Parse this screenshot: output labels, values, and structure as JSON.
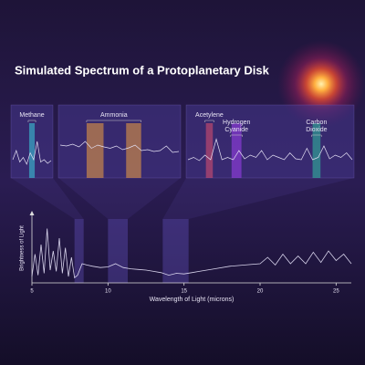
{
  "chart_data": {
    "type": "line",
    "title": "Simulated Spectrum of a Protoplanetary Disk",
    "xlabel": "Wavelength of Light (microns)",
    "ylabel": "Brightness of Light",
    "xlim": [
      5,
      26
    ],
    "xticks": [
      5,
      10,
      15,
      20,
      25
    ],
    "ylim": [
      0,
      1
    ],
    "color": "#d8d4ec",
    "x": [
      5.0,
      5.2,
      5.4,
      5.6,
      5.8,
      6.0,
      6.2,
      6.4,
      6.6,
      6.8,
      7.0,
      7.2,
      7.4,
      7.6,
      7.8,
      8.0,
      8.3,
      8.6,
      9,
      9.5,
      10,
      10.5,
      11,
      11.5,
      12,
      12.5,
      13,
      13.5,
      14,
      14.5,
      15,
      15.5,
      16,
      17,
      18,
      19,
      20,
      20.5,
      21,
      21.5,
      22,
      22.5,
      23,
      23.5,
      24,
      24.5,
      25,
      25.5,
      26
    ],
    "values": [
      0.1,
      0.45,
      0.12,
      0.6,
      0.15,
      0.85,
      0.2,
      0.5,
      0.18,
      0.7,
      0.15,
      0.55,
      0.1,
      0.4,
      0.08,
      0.12,
      0.3,
      0.28,
      0.26,
      0.24,
      0.25,
      0.3,
      0.24,
      0.22,
      0.21,
      0.2,
      0.18,
      0.16,
      0.12,
      0.15,
      0.14,
      0.16,
      0.18,
      0.22,
      0.26,
      0.28,
      0.3,
      0.4,
      0.28,
      0.45,
      0.3,
      0.42,
      0.3,
      0.48,
      0.32,
      0.5,
      0.35,
      0.45,
      0.3
    ],
    "insets": [
      {
        "xlim": [
          7.8,
          8.4
        ],
        "ylim": [
          0,
          1
        ],
        "values": [
          0.3,
          0.5,
          0.25,
          0.35,
          0.2,
          0.45,
          0.3,
          0.7,
          0.25,
          0.3,
          0.22,
          0.28
        ],
        "bands": [
          {
            "label": [
              "Methane"
            ],
            "color": "#3ad0e0",
            "range": [
              8.06,
              8.14
            ]
          }
        ]
      },
      {
        "xlim": [
          10.0,
          11.3
        ],
        "ylim": [
          0,
          1
        ],
        "label": "Ammonia",
        "values": [
          0.62,
          0.6,
          0.64,
          0.58,
          0.7,
          0.55,
          0.62,
          0.58,
          0.55,
          0.6,
          0.52,
          0.56,
          0.62,
          0.5,
          0.52,
          0.48,
          0.5,
          0.6,
          0.46,
          0.48
        ],
        "bands": [
          {
            "color": "#f0a040",
            "range": [
              10.3,
              10.48
            ]
          },
          {
            "color": "#f0a040",
            "range": [
              10.72,
              10.88
            ]
          }
        ]
      },
      {
        "xlim": [
          13.6,
          15.3
        ],
        "ylim": [
          0,
          1
        ],
        "values": [
          0.3,
          0.35,
          0.28,
          0.4,
          0.3,
          0.75,
          0.3,
          0.35,
          0.3,
          0.5,
          0.32,
          0.4,
          0.35,
          0.5,
          0.3,
          0.4,
          0.35,
          0.3,
          0.45,
          0.32,
          0.3,
          0.55,
          0.3,
          0.35,
          0.6,
          0.32,
          0.4,
          0.35,
          0.45,
          0.3
        ],
        "bands": [
          {
            "label": [
              "Acetylene"
            ],
            "color": "#e05070",
            "range": [
              13.8,
              13.87
            ]
          },
          {
            "label": [
              "Hydrogen",
              "Cyanide"
            ],
            "color": "#a040f0",
            "range": [
              14.06,
              14.16
            ]
          },
          {
            "label": [
              "Carbon",
              "Dioxide"
            ],
            "color": "#30c0a0",
            "range": [
              14.88,
              14.96
            ]
          }
        ]
      }
    ]
  }
}
